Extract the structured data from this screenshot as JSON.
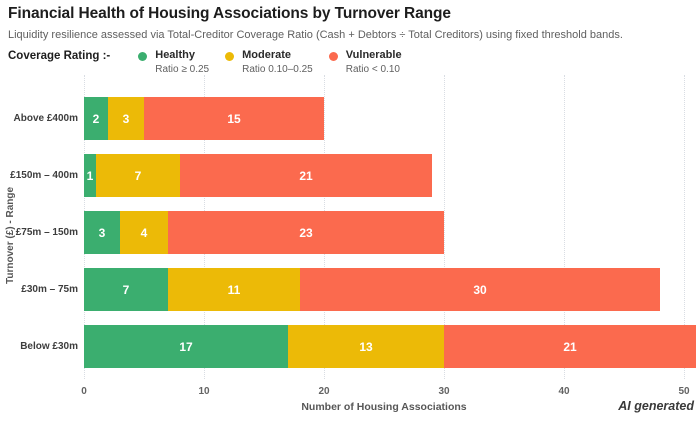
{
  "title": "Financial Health of Housing Associations by Turnover Range",
  "subtitle": "Liquidity resilience assessed via Total-Creditor Coverage Ratio (Cash + Debtors ÷ Total Creditors) using fixed threshold bands.",
  "legend": {
    "title": "Coverage Rating :-",
    "items": [
      {
        "label": "Healthy",
        "sublabel": "Ratio ≥ 0.25",
        "color": "#3BAE6F"
      },
      {
        "label": "Moderate",
        "sublabel": "Ratio 0.10–0.25",
        "color": "#ECBA07"
      },
      {
        "label": "Vulnerable",
        "sublabel": "Ratio < 0.10",
        "color": "#FB6A4E"
      }
    ]
  },
  "watermark": "AI generated",
  "chart_data": {
    "type": "bar",
    "orientation": "horizontal",
    "stacked": true,
    "title": "Financial Health of Housing Associations by Turnover Range",
    "categories": [
      "Above £400m",
      "£150m – 400m",
      "£75m – 150m",
      "£30m – 75m",
      "Below £30m"
    ],
    "series": [
      {
        "name": "Healthy",
        "color": "#3BAE6F",
        "values": [
          2,
          1,
          3,
          7,
          17
        ]
      },
      {
        "name": "Moderate",
        "color": "#ECBA07",
        "values": [
          3,
          7,
          4,
          11,
          13
        ]
      },
      {
        "name": "Vulnerable",
        "color": "#FB6A4E",
        "values": [
          15,
          21,
          23,
          30,
          21
        ]
      }
    ],
    "xlabel": "Number of Housing Associations",
    "ylabel": "Turnover (£) - Range",
    "xlim": [
      0,
      50
    ],
    "xticks": [
      0,
      10,
      20,
      30,
      40,
      50
    ],
    "grid": "vertical-dotted",
    "legend_position": "top-left"
  }
}
